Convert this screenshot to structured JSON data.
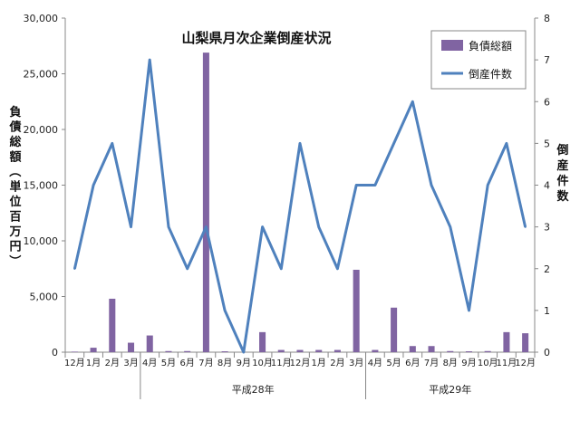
{
  "chart_data": {
    "type": "bar+line",
    "title": "山梨県月次企業倒産状況",
    "categories": [
      "12月",
      "1月",
      "2月",
      "3月",
      "4月",
      "5月",
      "6月",
      "7月",
      "8月",
      "9月",
      "10月",
      "11月",
      "12月",
      "1月",
      "2月",
      "3月",
      "4月",
      "5月",
      "6月",
      "7月",
      "8月",
      "9月",
      "10月",
      "11月",
      "12月"
    ],
    "era_groups": [
      {
        "label": "平成28年",
        "start": 4,
        "end": 15
      },
      {
        "label": "平成29年",
        "start": 16,
        "end": 24
      }
    ],
    "series": [
      {
        "name": "負債総額",
        "type": "bar",
        "axis": "left",
        "color": "#8064a2",
        "values": [
          50,
          400,
          4800,
          850,
          1500,
          100,
          100,
          26900,
          80,
          0,
          1800,
          200,
          200,
          200,
          200,
          7400,
          200,
          4000,
          550,
          550,
          100,
          80,
          100,
          1800,
          1700
        ]
      },
      {
        "name": "倒産件数",
        "type": "line",
        "axis": "right",
        "color": "#4f81bd",
        "values": [
          2,
          4,
          5,
          3,
          7,
          3,
          2,
          3,
          1,
          0,
          3,
          2,
          5,
          3,
          2,
          4,
          4,
          5,
          6,
          4,
          3,
          1,
          4,
          5,
          3
        ]
      }
    ],
    "yLeft": {
      "label": "負債総額（単位百万円）",
      "min": 0,
      "max": 30000,
      "ticks": [
        "0",
        "5,000",
        "10,000",
        "15,000",
        "20,000",
        "25,000",
        "30,000"
      ]
    },
    "yRight": {
      "label": "倒産件数",
      "min": 0,
      "max": 8,
      "ticks": [
        "0",
        "1",
        "2",
        "3",
        "4",
        "5",
        "6",
        "7",
        "8"
      ]
    },
    "legend": {
      "placement": "top-right"
    },
    "grid": false
  }
}
